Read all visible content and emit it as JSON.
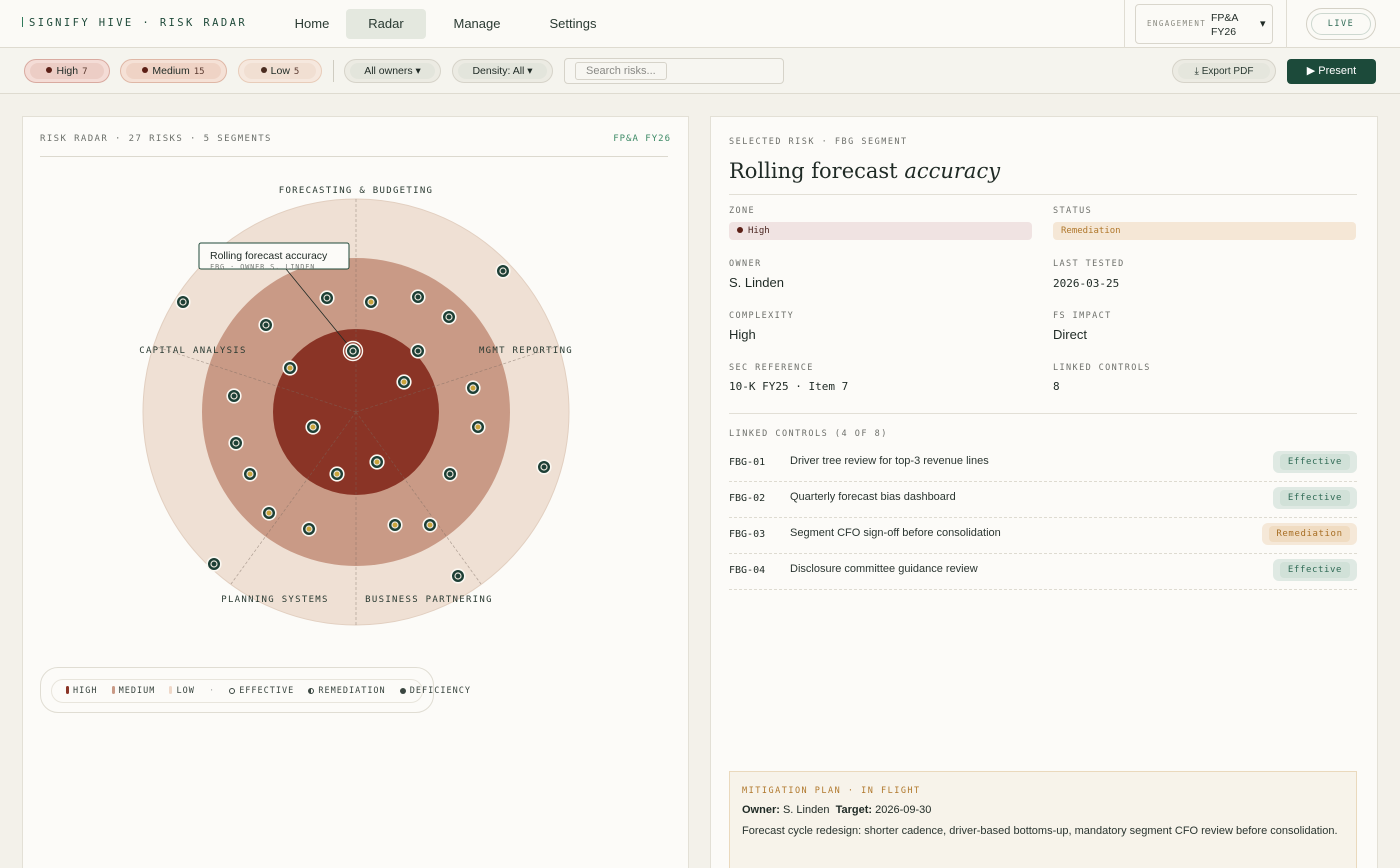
{
  "brand": "SIGNIFY HIVE · RISK RADAR",
  "nav": {
    "tabs": [
      "Home",
      "Radar",
      "Manage",
      "Settings"
    ],
    "active": "Radar"
  },
  "engagement": {
    "label": "ENGAGEMENT",
    "value": "FP&A FY26",
    "icon": "chevron-down-icon"
  },
  "live_label": "LIVE",
  "filters": {
    "severity": [
      {
        "label": "High",
        "count": "7",
        "color": "#5c1f16",
        "bg": "#efd6d0"
      },
      {
        "label": "Medium",
        "count": "15",
        "color": "#5c1f16",
        "bg": "#f0dcd2"
      },
      {
        "label": "Low",
        "count": "5",
        "color": "#5c3020",
        "bg": "#f3e4d9"
      }
    ],
    "owners": "All owners ▾",
    "density": "Density: All ▾",
    "search_placeholder": "Search risks...",
    "export_label": "⤓ Export PDF",
    "present_label": "▶ Present"
  },
  "radar_panel": {
    "header": "RISK RADAR · 27 RISKS · 5 SEGMENTS",
    "tag": "FP&A FY26",
    "segments": [
      "FORECASTING & BUDGETING",
      "MGMT REPORTING",
      "BUSINESS PARTNERING",
      "PLANNING SYSTEMS",
      "CAPITAL ANALYSIS"
    ],
    "tooltip": {
      "title": "Rolling forecast accuracy",
      "sub": "FBG · OWNER S. LINDEN"
    },
    "legend": [
      "HIGH",
      "MEDIUM",
      "LOW",
      "EFFECTIVE",
      "REMEDIATION",
      "DEFICIENCY"
    ],
    "colors": {
      "high": "#8a3426",
      "medium": "#c99a86",
      "low": "#efe0d4",
      "marker": "#1d3f35",
      "amber": "#c9a43a"
    }
  },
  "detail": {
    "kicker": "SELECTED RISK · FBG SEGMENT",
    "title_main": "Rolling forecast",
    "title_em": "accuracy",
    "zone_label": "ZONE",
    "zone_value": "High",
    "status_label": "STATUS",
    "status_value": "Remediation",
    "owner_label": "OWNER",
    "owner_value": "S. Linden",
    "last_tested_label": "LAST TESTED",
    "last_tested_value": "2026-03-25",
    "complexity_label": "COMPLEXITY",
    "complexity_value": "High",
    "fs_impact_label": "FS IMPACT",
    "fs_impact_value": "Direct",
    "sec_ref_label": "SEC REFERENCE",
    "sec_ref_value": "10-K FY25 · Item 7",
    "linked_controls_label": "LINKED CONTROLS",
    "linked_controls_value": "8",
    "controls_header": "LINKED CONTROLS (4 OF 8)",
    "controls": [
      {
        "id": "FBG-01",
        "desc": "Driver tree review for top-3 revenue lines",
        "status": "Effective"
      },
      {
        "id": "FBG-02",
        "desc": "Quarterly forecast bias dashboard",
        "status": "Effective"
      },
      {
        "id": "FBG-03",
        "desc": "Segment CFO sign-off before consolidation",
        "status": "Remediation"
      },
      {
        "id": "FBG-04",
        "desc": "Disclosure committee guidance review",
        "status": "Effective"
      }
    ],
    "mitigation": {
      "kicker": "MITIGATION PLAN · IN FLIGHT",
      "owner_label": "Owner:",
      "owner": "S. Linden",
      "target_label": "Target:",
      "target": "2026-09-30",
      "text": "Forecast cycle redesign: shorter cadence, driver-based bottoms-up, mandatory segment CFO review before consolidation."
    }
  }
}
